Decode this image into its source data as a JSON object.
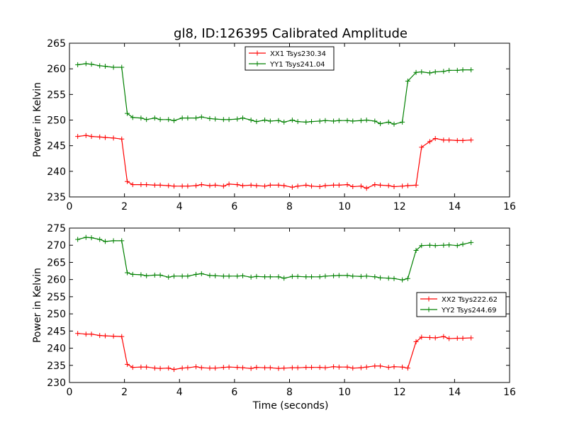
{
  "chart_data": [
    {
      "type": "line",
      "title": "gl8, ID:126395 Calibrated Amplitude",
      "xlabel": "",
      "ylabel": "Power in Kelvin",
      "xlim": [
        0,
        16
      ],
      "ylim": [
        235,
        265
      ],
      "xticks": [
        0,
        2,
        4,
        6,
        8,
        10,
        12,
        14,
        16
      ],
      "yticks": [
        235,
        240,
        245,
        250,
        255,
        260,
        265
      ],
      "legend_position": "top-center",
      "x": [
        0.3,
        0.6,
        0.8,
        1.1,
        1.3,
        1.6,
        1.9,
        2.1,
        2.3,
        2.6,
        2.8,
        3.1,
        3.3,
        3.6,
        3.8,
        4.1,
        4.3,
        4.6,
        4.8,
        5.1,
        5.3,
        5.6,
        5.8,
        6.1,
        6.3,
        6.6,
        6.8,
        7.1,
        7.3,
        7.6,
        7.8,
        8.1,
        8.3,
        8.6,
        8.8,
        9.1,
        9.3,
        9.6,
        9.8,
        10.1,
        10.3,
        10.6,
        10.8,
        11.1,
        11.3,
        11.6,
        11.8,
        12.1,
        12.3,
        12.6,
        12.8,
        13.1,
        13.3,
        13.6,
        13.8,
        14.1,
        14.3,
        14.6
      ],
      "series": [
        {
          "name": "XX1 Tsys230.34",
          "color": "#ff0000",
          "values": [
            246.8,
            247,
            246.8,
            246.7,
            246.6,
            246.5,
            246.3,
            238,
            237.4,
            237.4,
            237.4,
            237.3,
            237.3,
            237.2,
            237.1,
            237.1,
            237.1,
            237.2,
            237.4,
            237.2,
            237.3,
            237.1,
            237.5,
            237.4,
            237.2,
            237.3,
            237.2,
            237.1,
            237.3,
            237.3,
            237.2,
            236.9,
            237.1,
            237.3,
            237.1,
            237,
            237.2,
            237.3,
            237.3,
            237.4,
            237,
            237.1,
            236.7,
            237.4,
            237.3,
            237.2,
            237,
            237.1,
            237.2,
            237.3,
            244.7,
            245.8,
            246.4,
            246.1,
            246.1,
            246,
            246,
            246.1
          ]
        },
        {
          "name": "YY1 Tsys241.04",
          "color": "#008000",
          "values": [
            260.8,
            261,
            260.9,
            260.6,
            260.5,
            260.3,
            260.3,
            251.3,
            250.5,
            250.4,
            250.1,
            250.4,
            250.1,
            250.1,
            249.9,
            250.4,
            250.4,
            250.4,
            250.6,
            250.3,
            250.2,
            250.1,
            250.1,
            250.2,
            250.4,
            250,
            249.7,
            250,
            249.8,
            249.9,
            249.6,
            250,
            249.7,
            249.6,
            249.7,
            249.8,
            249.9,
            249.8,
            249.9,
            249.9,
            249.8,
            249.9,
            250,
            249.8,
            249.3,
            249.6,
            249.2,
            249.6,
            257.6,
            259.3,
            259.4,
            259.2,
            259.4,
            259.5,
            259.7,
            259.7,
            259.8,
            259.8
          ]
        }
      ]
    },
    {
      "type": "line",
      "title": "",
      "xlabel": "Time (seconds)",
      "ylabel": "Power in Kelvin",
      "xlim": [
        0,
        16
      ],
      "ylim": [
        230,
        275
      ],
      "xticks": [
        0,
        2,
        4,
        6,
        8,
        10,
        12,
        14,
        16
      ],
      "yticks": [
        230,
        235,
        240,
        245,
        250,
        255,
        260,
        265,
        270,
        275
      ],
      "legend_position": "center-right",
      "x": [
        0.3,
        0.6,
        0.8,
        1.1,
        1.3,
        1.6,
        1.9,
        2.1,
        2.3,
        2.6,
        2.8,
        3.1,
        3.3,
        3.6,
        3.8,
        4.1,
        4.3,
        4.6,
        4.8,
        5.1,
        5.3,
        5.6,
        5.8,
        6.1,
        6.3,
        6.6,
        6.8,
        7.1,
        7.3,
        7.6,
        7.8,
        8.1,
        8.3,
        8.6,
        8.8,
        9.1,
        9.3,
        9.6,
        9.8,
        10.1,
        10.3,
        10.6,
        10.8,
        11.1,
        11.3,
        11.6,
        11.8,
        12.1,
        12.3,
        12.6,
        12.8,
        13.1,
        13.3,
        13.6,
        13.8,
        14.1,
        14.3,
        14.6
      ],
      "series": [
        {
          "name": "XX2 Tsys222.62",
          "color": "#ff0000",
          "values": [
            244.3,
            244.1,
            244.1,
            243.7,
            243.6,
            243.5,
            243.4,
            235.3,
            234.4,
            234.5,
            234.5,
            234.2,
            234.1,
            234.2,
            233.8,
            234.2,
            234.3,
            234.6,
            234.3,
            234.2,
            234.2,
            234.4,
            234.5,
            234.4,
            234.3,
            234.1,
            234.4,
            234.3,
            234.3,
            234.1,
            234.2,
            234.3,
            234.3,
            234.4,
            234.4,
            234.4,
            234.3,
            234.6,
            234.5,
            234.5,
            234.2,
            234.3,
            234.5,
            234.8,
            234.8,
            234.4,
            234.6,
            234.5,
            234.2,
            241.9,
            243.2,
            243.1,
            243,
            243.4,
            242.8,
            242.9,
            242.9,
            243
          ]
        },
        {
          "name": "YY2 Tsys244.69",
          "color": "#008000",
          "values": [
            271.7,
            272.3,
            272.2,
            271.7,
            271.1,
            271.3,
            271.3,
            262,
            261.5,
            261.4,
            261.1,
            261.3,
            261.3,
            260.7,
            261,
            261,
            261,
            261.5,
            261.7,
            261.2,
            261.1,
            261,
            261,
            261,
            261.1,
            260.7,
            260.9,
            260.8,
            260.8,
            260.8,
            260.4,
            260.9,
            260.9,
            260.8,
            260.8,
            260.8,
            261,
            261.1,
            261.2,
            261.2,
            261,
            260.9,
            261,
            260.8,
            260.5,
            260.4,
            260.3,
            259.9,
            260.3,
            268.5,
            269.9,
            270,
            269.9,
            270,
            270.1,
            269.9,
            270.3,
            270.8
          ]
        }
      ]
    }
  ]
}
